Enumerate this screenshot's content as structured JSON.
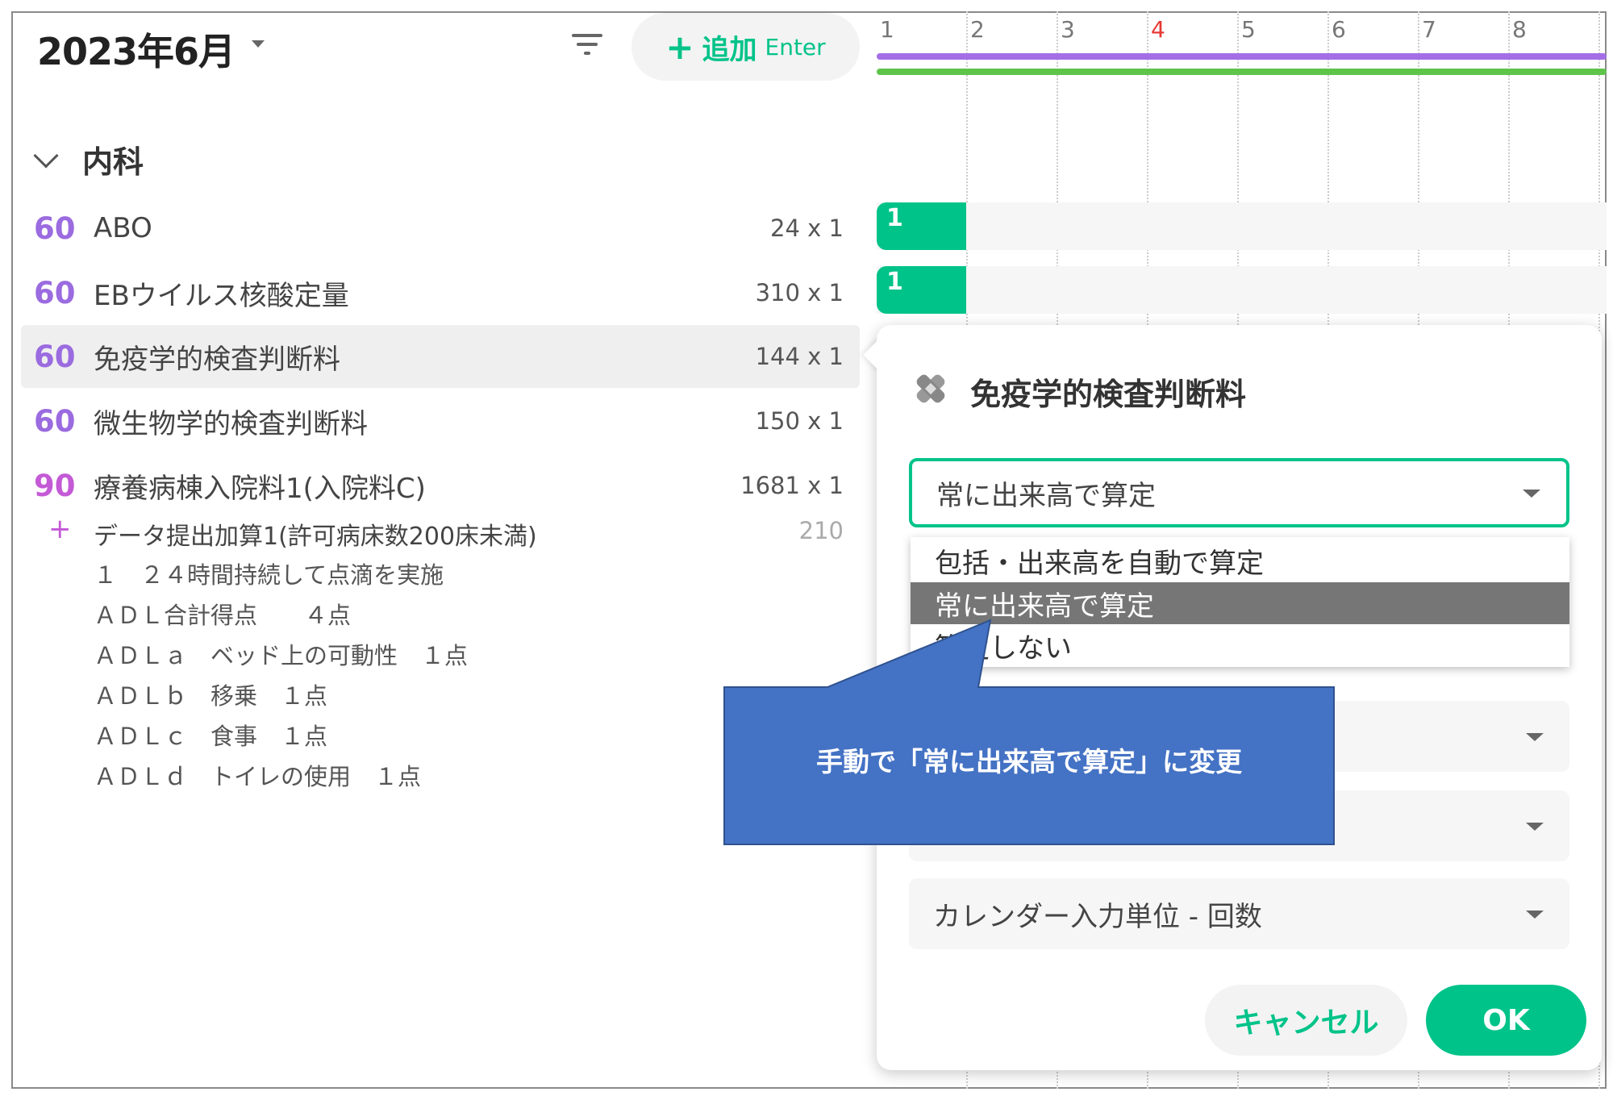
{
  "header": {
    "month": "2023年6月",
    "add_button": {
      "icon": "plus-icon",
      "label": "追加",
      "shortcut": "Enter"
    },
    "filter_icon": "filter-icon"
  },
  "calendar": {
    "days": [
      "1",
      "2",
      "3",
      "4",
      "5",
      "6",
      "7",
      "8"
    ],
    "holiday_color": "#e53935",
    "bar_colors": {
      "purple": "#a36ee6",
      "green": "#5ec44a"
    }
  },
  "section": {
    "title": "内科"
  },
  "rows": [
    {
      "points": "60",
      "name": "ABO",
      "amount": "24 x 1",
      "point_color": "#9b6be0",
      "day1": "1"
    },
    {
      "points": "60",
      "name": "EBウイルス核酸定量",
      "amount": "310 x 1",
      "point_color": "#9b6be0",
      "day1": "1"
    },
    {
      "points": "60",
      "name": "免疫学的検査判断料",
      "amount": "144 x 1",
      "point_color": "#9b6be0"
    },
    {
      "points": "60",
      "name": "微生物学的検査判断料",
      "amount": "150 x 1",
      "point_color": "#9b6be0"
    },
    {
      "points": "90",
      "name": "療養病棟入院料1(入院料C)",
      "amount": "1681 x 1",
      "point_color": "#c45ad6"
    }
  ],
  "addon": {
    "name": "データ提出加算1(許可病床数200床未満)",
    "amount": "210"
  },
  "details": [
    "１　２４時間持続して点滴を実施",
    "ＡＤＬ合計得点　　４点",
    "ＡＤＬａ　ベッド上の可動性　１点",
    "ＡＤＬｂ　移乗　１点",
    "ＡＤＬｃ　食事　１点",
    "ＡＤＬｄ　トイレの使用　１点"
  ],
  "popup": {
    "icon": "bandage-icon",
    "title": "免疫学的検査判断料",
    "select_value": "常に出来高で算定",
    "options": [
      "包括・出来高を自動で算定",
      "常に出来高で算定",
      "算定しない"
    ],
    "highlighted_option": "常に出来高で算定",
    "field4": "カレンダー入力単位 - 回数",
    "cancel": "キャンセル",
    "ok": "OK"
  },
  "callout": {
    "text": "手動で「常に出来高で算定」に変更",
    "fill": "#4472c4",
    "border": "#2f528f"
  }
}
